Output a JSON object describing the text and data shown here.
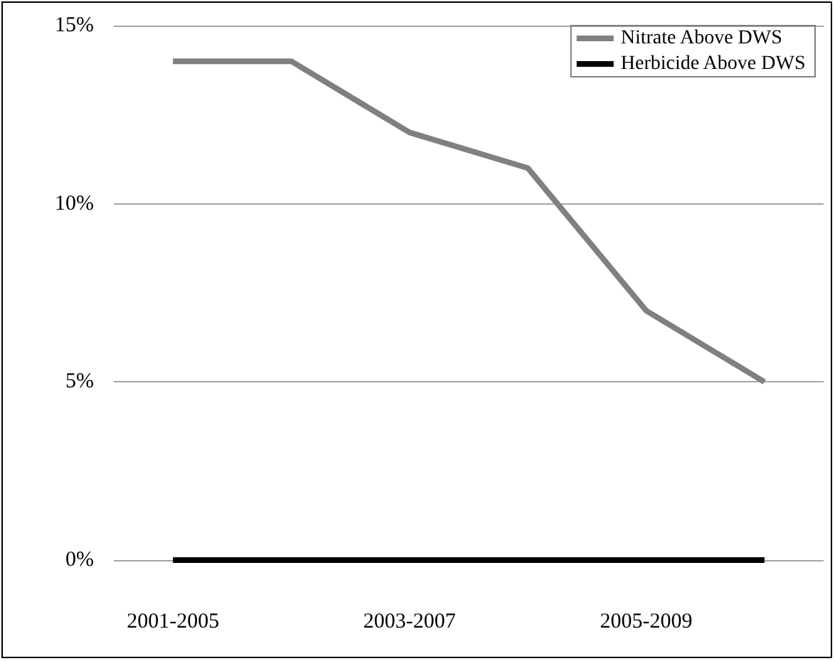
{
  "chart_data": {
    "type": "line",
    "categories": [
      "2001-2005",
      null,
      "2003-2007",
      null,
      "2005-2009",
      null
    ],
    "series": [
      {
        "name": "Nitrate Above DWS",
        "color": "#808080",
        "values": [
          14,
          14,
          12,
          11,
          7,
          5
        ]
      },
      {
        "name": "Herbicide Above DWS",
        "color": "#000000",
        "values": [
          0,
          0,
          0,
          0,
          0,
          0
        ]
      }
    ],
    "ylim": [
      0,
      15
    ],
    "yticks": [
      {
        "value": 0,
        "label": "0%"
      },
      {
        "value": 5,
        "label": "5%"
      },
      {
        "value": 10,
        "label": "10%"
      },
      {
        "value": 15,
        "label": "15%"
      }
    ],
    "grid": "y",
    "legend": "top right",
    "marker": "none",
    "line_style": "solid"
  }
}
